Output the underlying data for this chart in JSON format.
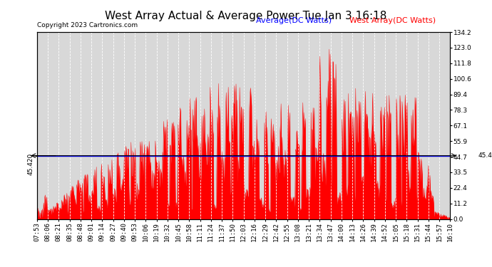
{
  "title": "West Array Actual & Average Power Tue Jan 3 16:18",
  "copyright": "Copyright 2023 Cartronics.com",
  "legend_avg": "Average(DC Watts)",
  "legend_west": "West Array(DC Watts)",
  "avg_color": "#0000ff",
  "west_color": "#ff0000",
  "avg_value": 45.42,
  "ymax": 134.2,
  "ymin": 0.0,
  "yticks_right": [
    0.0,
    11.2,
    22.4,
    33.5,
    44.7,
    55.9,
    67.1,
    78.3,
    89.4,
    100.6,
    111.8,
    123.0,
    134.2
  ],
  "ytick_left_label": "45.420",
  "bg_color": "#d8d8d8",
  "x_labels": [
    "07:53",
    "08:06",
    "08:21",
    "08:35",
    "08:48",
    "09:01",
    "09:14",
    "09:27",
    "09:40",
    "09:53",
    "10:06",
    "10:19",
    "10:32",
    "10:45",
    "10:58",
    "11:11",
    "11:24",
    "11:37",
    "11:50",
    "12:03",
    "12:16",
    "12:29",
    "12:42",
    "12:55",
    "13:08",
    "13:21",
    "13:34",
    "13:47",
    "14:00",
    "14:13",
    "14:26",
    "14:39",
    "14:52",
    "15:05",
    "15:18",
    "15:31",
    "15:44",
    "15:57",
    "16:10"
  ],
  "title_fontsize": 11,
  "tick_fontsize": 6.5,
  "copyright_fontsize": 6.5,
  "legend_fontsize": 8
}
